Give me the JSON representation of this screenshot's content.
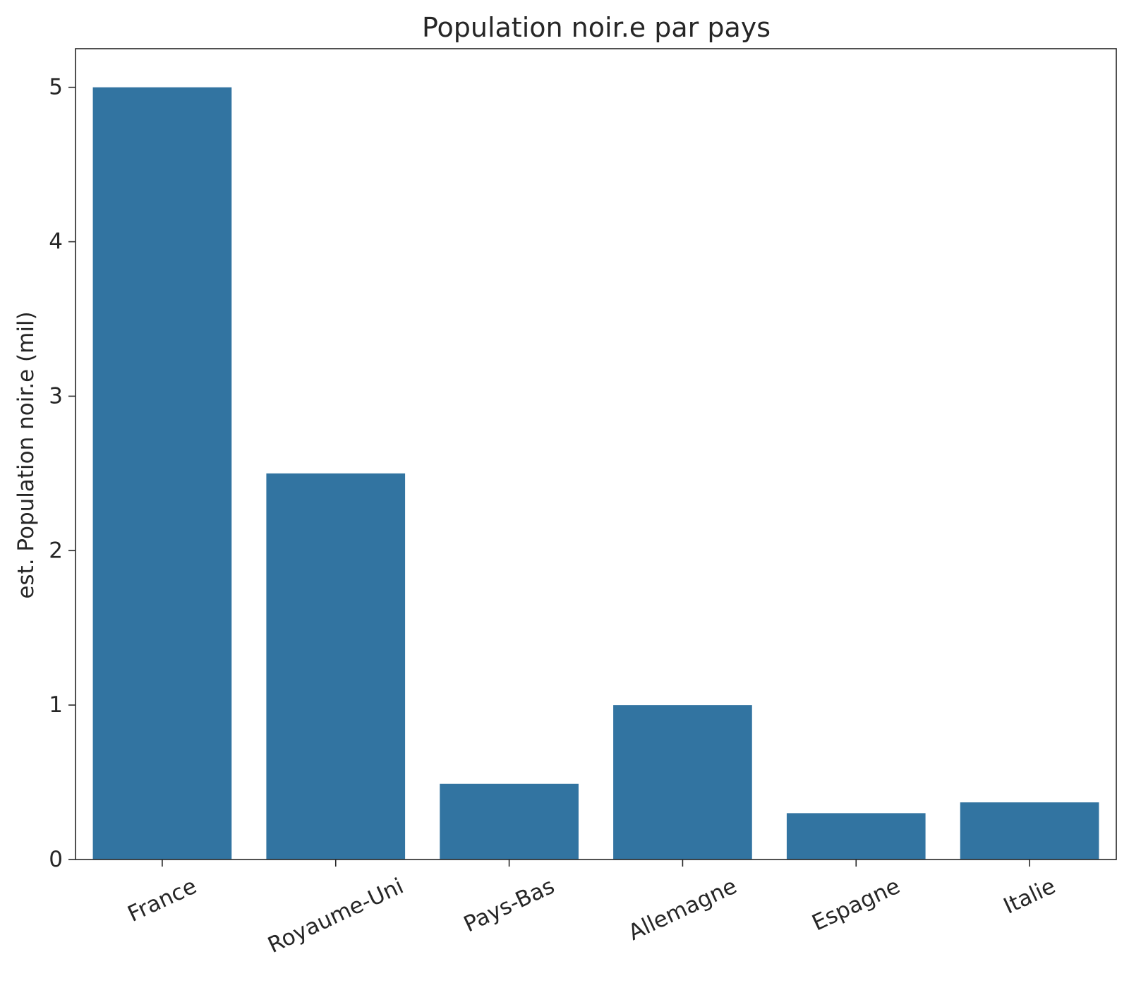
{
  "chart_data": {
    "type": "bar",
    "title": "Population noir.e par pays",
    "xlabel": "",
    "ylabel": "est. Population noir.e (mil)",
    "categories": [
      "France",
      "Royaume-Uni",
      "Pays-Bas",
      "Allemagne",
      "Espagne",
      "Italie"
    ],
    "values": [
      5.0,
      2.5,
      0.49,
      1.0,
      0.3,
      0.37
    ],
    "ylim": [
      0,
      5.25
    ],
    "yticks": [
      0,
      1,
      2,
      3,
      4,
      5
    ],
    "ytick_labels": [
      "0",
      "1",
      "2",
      "3",
      "4",
      "5"
    ],
    "xtick_rotation_deg": 25,
    "grid": false,
    "legend": "none",
    "colors": {
      "bar": "#3274a1",
      "axis": "#262626",
      "text": "#262626",
      "background": "#ffffff"
    }
  }
}
